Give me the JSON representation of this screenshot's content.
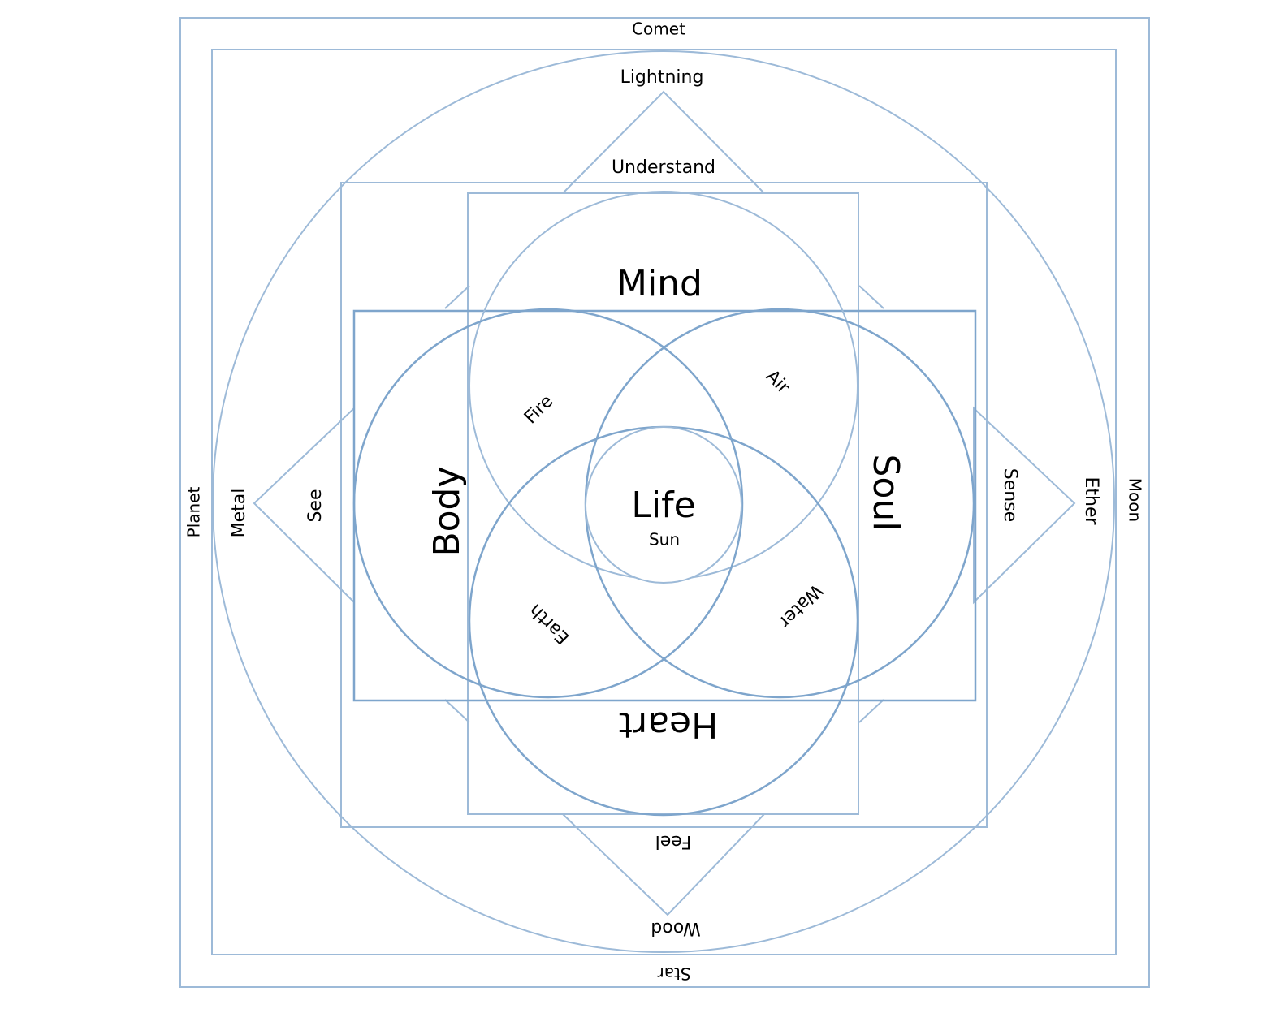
{
  "labels": {
    "comet": "Comet",
    "star": "Star",
    "planet": "Planet",
    "moon": "Moon",
    "lightning": "Lightning",
    "wood": "Wood",
    "metal": "Metal",
    "ether": "Ether",
    "understand": "Understand",
    "feel": "Feel",
    "see": "See",
    "sense": "Sense",
    "mind": "Mind",
    "heart": "Heart",
    "body": "Body",
    "soul": "Soul",
    "fire": "Fire",
    "air": "Air",
    "earth": "Earth",
    "water": "Water",
    "life": "Life",
    "sun": "Sun"
  }
}
